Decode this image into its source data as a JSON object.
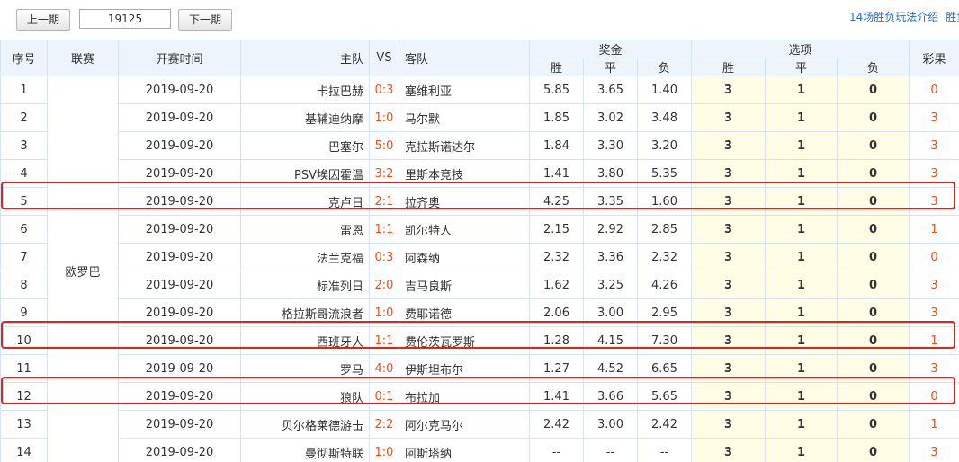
{
  "toolbar": {
    "prev": "上一期",
    "issue": "19125",
    "next": "下一期",
    "links": [
      "14场胜负玩法介绍",
      "胜负"
    ]
  },
  "table": {
    "headers": {
      "no": "序号",
      "league": "联赛",
      "time": "开赛时间",
      "home": "主队",
      "vs": "VS",
      "away": "客队",
      "bonus": "奖金",
      "options": "选项",
      "result": "彩果",
      "sub": [
        "胜",
        "平",
        "负",
        "胜",
        "平",
        "负"
      ]
    },
    "league": "欧罗巴",
    "rows": [
      [
        "1",
        "2019-09-20",
        "卡拉巴赫",
        "0:3",
        "塞维利亚",
        "5.85",
        "3.65",
        "1.40",
        "3",
        "1",
        "0",
        "0"
      ],
      [
        "2",
        "2019-09-20",
        "基辅迪纳摩",
        "1:0",
        "马尔默",
        "1.85",
        "3.02",
        "3.48",
        "3",
        "1",
        "0",
        "3"
      ],
      [
        "3",
        "2019-09-20",
        "巴塞尔",
        "5:0",
        "克拉斯诺达尔",
        "1.84",
        "3.30",
        "3.20",
        "3",
        "1",
        "0",
        "3"
      ],
      [
        "4",
        "2019-09-20",
        "PSV埃因霍温",
        "3:2",
        "里斯本竞技",
        "1.41",
        "3.80",
        "5.35",
        "3",
        "1",
        "0",
        "3"
      ],
      [
        "5",
        "2019-09-20",
        "克卢日",
        "2:1",
        "拉齐奥",
        "4.25",
        "3.35",
        "1.60",
        "3",
        "1",
        "0",
        "3"
      ],
      [
        "6",
        "2019-09-20",
        "雷恩",
        "1:1",
        "凯尔特人",
        "2.15",
        "2.92",
        "2.85",
        "3",
        "1",
        "0",
        "1"
      ],
      [
        "7",
        "2019-09-20",
        "法兰克福",
        "0:3",
        "阿森纳",
        "2.32",
        "3.36",
        "2.32",
        "3",
        "1",
        "0",
        "0"
      ],
      [
        "8",
        "2019-09-20",
        "标准列日",
        "2:0",
        "吉马良斯",
        "1.62",
        "3.25",
        "4.26",
        "3",
        "1",
        "0",
        "3"
      ],
      [
        "9",
        "2019-09-20",
        "格拉斯哥流浪者",
        "1:0",
        "费耶诺德",
        "2.06",
        "3.00",
        "2.95",
        "3",
        "1",
        "0",
        "3"
      ],
      [
        "10",
        "2019-09-20",
        "西班牙人",
        "1:1",
        "费伦茨瓦罗斯",
        "1.28",
        "4.15",
        "7.30",
        "3",
        "1",
        "0",
        "1"
      ],
      [
        "11",
        "2019-09-20",
        "罗马",
        "4:0",
        "伊斯坦布尔",
        "1.27",
        "4.52",
        "6.65",
        "3",
        "1",
        "0",
        "3"
      ],
      [
        "12",
        "2019-09-20",
        "狼队",
        "0:1",
        "布拉加",
        "1.41",
        "3.66",
        "5.65",
        "3",
        "1",
        "0",
        "0"
      ],
      [
        "13",
        "2019-09-20",
        "贝尔格莱德游击",
        "2:2",
        "阿尔克马尔",
        "2.42",
        "3.00",
        "2.42",
        "3",
        "1",
        "0",
        "1"
      ],
      [
        "14",
        "2019-09-20",
        "曼彻斯特联",
        "1:0",
        "阿斯塔纳",
        "--",
        "--",
        "--",
        "3",
        "1",
        "0",
        "3"
      ]
    ]
  }
}
